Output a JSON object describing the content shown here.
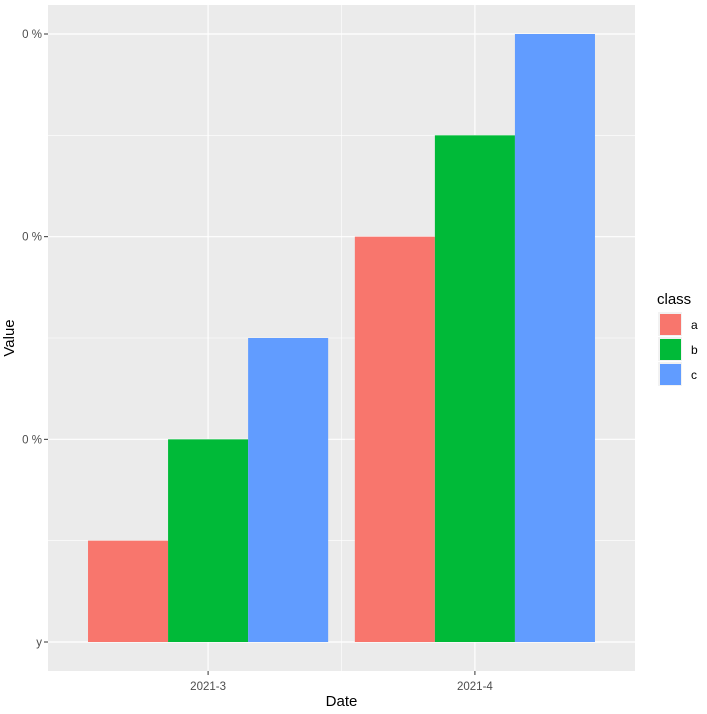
{
  "chart_data": {
    "type": "bar",
    "xlabel": "Date",
    "ylabel": "Value",
    "categories": [
      "2021-3",
      "2021-4"
    ],
    "series": [
      {
        "name": "a",
        "values": [
          0.5,
          2.0
        ]
      },
      {
        "name": "b",
        "values": [
          1.0,
          2.5
        ]
      },
      {
        "name": "c",
        "values": [
          1.5,
          3.0
        ]
      }
    ],
    "ylim": [
      0,
      3
    ],
    "y_tick_values": [
      0,
      1,
      2,
      3
    ],
    "y_tick_labels": [
      "y",
      "0 %",
      "0 %",
      "0 %"
    ],
    "legend": {
      "title": "class",
      "position": "right"
    },
    "grid": true
  },
  "colors": {
    "panel_background": "#ebebeb",
    "grid_major": "#ffffff",
    "series": {
      "a": "#f8766d",
      "b": "#00ba38",
      "c": "#619cff"
    }
  }
}
